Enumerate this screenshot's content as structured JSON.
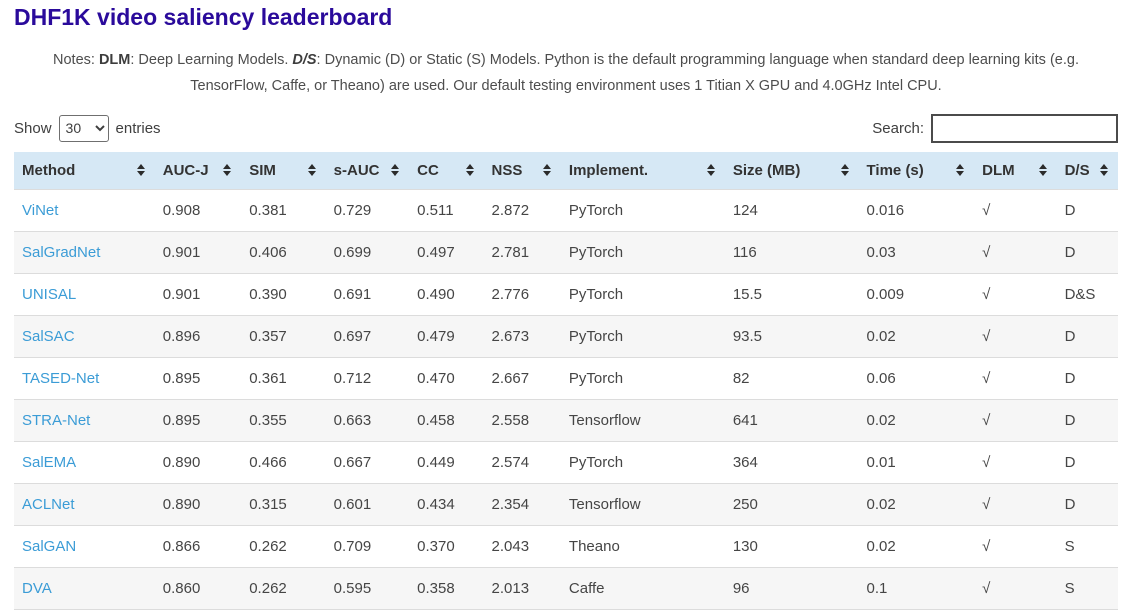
{
  "page": {
    "title": "DHF1K video saliency leaderboard",
    "notes": {
      "prefix": "Notes: ",
      "dlm_term": "DLM",
      "dlm_desc": ": Deep Learning Models. ",
      "ds_term": "D/S",
      "ds_desc": ": Dynamic (D) or Static (S) Models. Python is the default programming language when standard deep learning kits (e.g. TensorFlow, Caffe, or Theano) are used. Our default testing environment uses 1 Titian X GPU and 4.0GHz Intel CPU."
    }
  },
  "controls": {
    "show_label": "Show",
    "entries_label": "entries",
    "page_length": "30",
    "search_label": "Search:",
    "search_value": "",
    "search_placeholder": ""
  },
  "table": {
    "columns": [
      "Method",
      "AUC-J",
      "SIM",
      "s-AUC",
      "CC",
      "NSS",
      "Implement.",
      "Size (MB)",
      "Time (s)",
      "DLM",
      "D/S"
    ],
    "sort_icon_name": "sort-both-icon",
    "rows": [
      [
        "ViNet",
        "0.908",
        "0.381",
        "0.729",
        "0.511",
        "2.872",
        "PyTorch",
        "124",
        "0.016",
        "√",
        "D"
      ],
      [
        "SalGradNet",
        "0.901",
        "0.406",
        "0.699",
        "0.497",
        "2.781",
        "PyTorch",
        "116",
        "0.03",
        "√",
        "D"
      ],
      [
        "UNISAL",
        "0.901",
        "0.390",
        "0.691",
        "0.490",
        "2.776",
        "PyTorch",
        "15.5",
        "0.009",
        "√",
        "D&S"
      ],
      [
        "SalSAC",
        "0.896",
        "0.357",
        "0.697",
        "0.479",
        "2.673",
        "PyTorch",
        "93.5",
        "0.02",
        "√",
        "D"
      ],
      [
        "TASED-Net",
        "0.895",
        "0.361",
        "0.712",
        "0.470",
        "2.667",
        "PyTorch",
        "82",
        "0.06",
        "√",
        "D"
      ],
      [
        "STRA-Net",
        "0.895",
        "0.355",
        "0.663",
        "0.458",
        "2.558",
        "Tensorflow",
        "641",
        "0.02",
        "√",
        "D"
      ],
      [
        "SalEMA",
        "0.890",
        "0.466",
        "0.667",
        "0.449",
        "2.574",
        "PyTorch",
        "364",
        "0.01",
        "√",
        "D"
      ],
      [
        "ACLNet",
        "0.890",
        "0.315",
        "0.601",
        "0.434",
        "2.354",
        "Tensorflow",
        "250",
        "0.02",
        "√",
        "D"
      ],
      [
        "SalGAN",
        "0.866",
        "0.262",
        "0.709",
        "0.370",
        "2.043",
        "Theano",
        "130",
        "0.02",
        "√",
        "S"
      ],
      [
        "DVA",
        "0.860",
        "0.262",
        "0.595",
        "0.358",
        "2.013",
        "Caffe",
        "96",
        "0.1",
        "√",
        "S"
      ]
    ]
  },
  "colors": {
    "title": "#2a0a9b",
    "header_bg": "#d6e8f5",
    "link": "#3b9cd6",
    "row_stripe": "#f6f6f6",
    "border": "#dcdcdc"
  }
}
